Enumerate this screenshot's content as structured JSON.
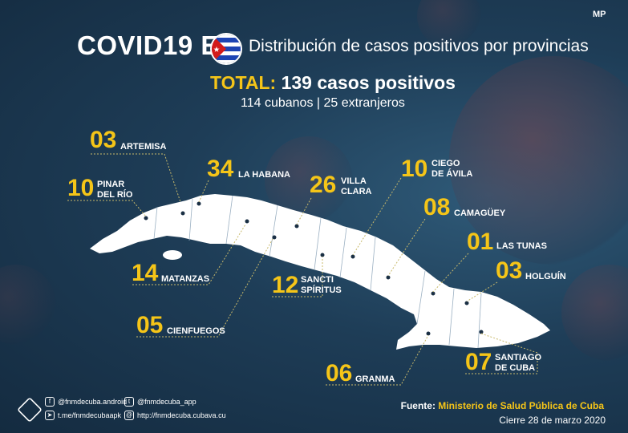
{
  "header": {
    "title": "COVID19 EN",
    "subtitle": "Distribución de casos positivos por provincias",
    "total_label": "TOTAL:",
    "total_value": "139 casos positivos",
    "breakdown": "114 cubanos | 25 extranjeros"
  },
  "provinces": [
    {
      "id": "artemisa",
      "count": "03",
      "name": "ARTEMISA"
    },
    {
      "id": "pinar",
      "count": "10",
      "name": "PINAR\nDEL RÍO"
    },
    {
      "id": "habana",
      "count": "34",
      "name": "LA HABANA"
    },
    {
      "id": "villaclara",
      "count": "26",
      "name": "VILLA\nCLARA"
    },
    {
      "id": "ciego",
      "count": "10",
      "name": "CIEGO\nDE ÁVILA"
    },
    {
      "id": "camaguey",
      "count": "08",
      "name": "CAMAGÜEY"
    },
    {
      "id": "lastunas",
      "count": "01",
      "name": "LAS TUNAS"
    },
    {
      "id": "holguin",
      "count": "03",
      "name": "HOLGUÍN"
    },
    {
      "id": "matanzas",
      "count": "14",
      "name": "MATANZAS"
    },
    {
      "id": "sancti",
      "count": "12",
      "name": "SANCTI\nSPÍRITUS"
    },
    {
      "id": "cienfuegos",
      "count": "05",
      "name": "CIENFUEGOS"
    },
    {
      "id": "granma",
      "count": "06",
      "name": "GRANMA"
    },
    {
      "id": "santiago",
      "count": "07",
      "name": "SANTIAGO\nDE CUBA"
    }
  ],
  "footer": {
    "facebook": "@fnmdecuba.android",
    "telegram": "t.me/fnmdecubaapk",
    "twitter": "@fnmdecuba_app",
    "web": "http://fnmdecuba.cubava.cu",
    "source_label": "Fuente:",
    "source_value": "Ministerio de Salud Pública de Cuba",
    "date": "Cierre 28 de marzo 2020"
  },
  "logo": "MP",
  "colors": {
    "accent": "#f5c518",
    "background": "#1e3d57",
    "map": "#ffffff"
  }
}
